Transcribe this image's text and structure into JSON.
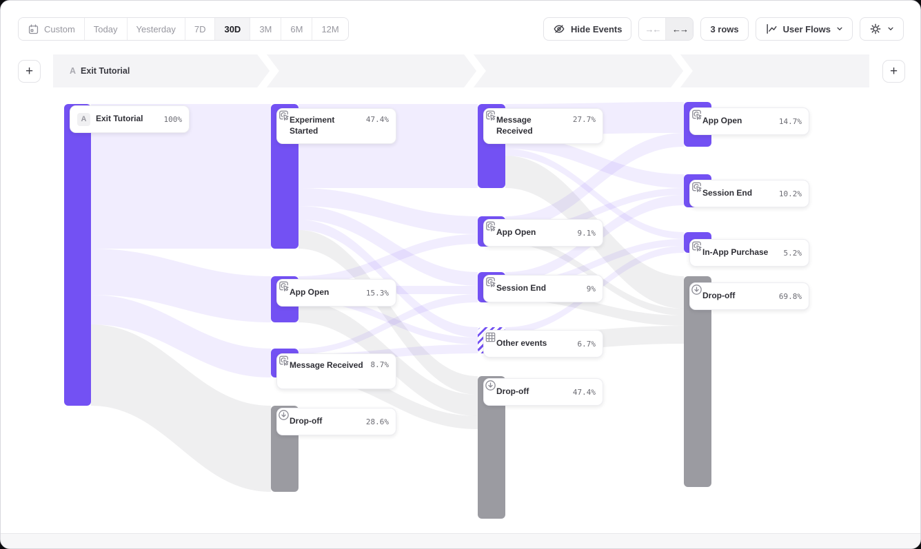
{
  "app": {
    "accent_color": "#7351f3",
    "dropoff_color": "#9b9ba1",
    "link_color": "#eeebfc",
    "dropoff_link_color": "#f3f3f5"
  },
  "toolbar": {
    "date_ranges": [
      {
        "label": "Custom",
        "has_calendar_icon": true,
        "selected": false
      },
      {
        "label": "Today",
        "selected": false
      },
      {
        "label": "Yesterday",
        "selected": false
      },
      {
        "label": "7D",
        "selected": false
      },
      {
        "label": "30D",
        "selected": true
      },
      {
        "label": "3M",
        "selected": false
      },
      {
        "label": "6M",
        "selected": false
      },
      {
        "label": "12M",
        "selected": false
      }
    ],
    "hide_events": {
      "label": "Hide Events"
    },
    "collapse_expand": {
      "collapse_glyph": "→←",
      "expand_glyph": "←→",
      "expanded": true
    },
    "rows": {
      "label": "3 rows"
    },
    "view_selector": {
      "label": "User Flows"
    }
  },
  "steps_header": {
    "badge": "A",
    "title": "Exit Tutorial",
    "add_step_label": "+"
  },
  "chart_data": {
    "type": "sankey",
    "title": "User Flows starting from Exit Tutorial",
    "columns": [
      {
        "nodes": [
          {
            "label": "Exit Tutorial",
            "pct": "100%",
            "value": 100,
            "type": "start",
            "badge": "A"
          }
        ]
      },
      {
        "nodes": [
          {
            "label": "Experiment Started",
            "pct": "47.4%",
            "value": 47.4,
            "type": "event"
          },
          {
            "label": "App Open",
            "pct": "15.3%",
            "value": 15.3,
            "type": "event"
          },
          {
            "label": "Message Received",
            "pct": "8.7%",
            "value": 8.7,
            "type": "event"
          },
          {
            "label": "Drop-off",
            "pct": "28.6%",
            "value": 28.6,
            "type": "dropoff"
          }
        ]
      },
      {
        "nodes": [
          {
            "label": "Message Received",
            "pct": "27.7%",
            "value": 27.7,
            "type": "event"
          },
          {
            "label": "App Open",
            "pct": "9.1%",
            "value": 9.1,
            "type": "event"
          },
          {
            "label": "Session End",
            "pct": "9%",
            "value": 9,
            "type": "event"
          },
          {
            "label": "Other events",
            "pct": "6.7%",
            "value": 6.7,
            "type": "other"
          },
          {
            "label": "Drop-off",
            "pct": "47.4%",
            "value": 47.4,
            "type": "dropoff"
          }
        ]
      },
      {
        "nodes": [
          {
            "label": "App Open",
            "pct": "14.7%",
            "value": 14.7,
            "type": "event"
          },
          {
            "label": "Session End",
            "pct": "10.2%",
            "value": 10.2,
            "type": "event"
          },
          {
            "label": "In-App Purchase",
            "pct": "5.2%",
            "value": 5.2,
            "type": "event"
          },
          {
            "label": "Drop-off",
            "pct": "69.8%",
            "value": 69.8,
            "type": "dropoff"
          }
        ]
      }
    ],
    "visible_links": [
      {
        "from": "Exit Tutorial",
        "to": "Experiment Started"
      },
      {
        "from": "Exit Tutorial",
        "to": "App Open (col 2)"
      },
      {
        "from": "Exit Tutorial",
        "to": "Message Received (col 2)"
      },
      {
        "from": "Exit Tutorial",
        "to": "Drop-off (col 2)"
      },
      {
        "from": "Experiment Started",
        "to": "Message Received (col 3)"
      },
      {
        "from": "Experiment Started",
        "to": "App Open (col 3)"
      },
      {
        "from": "Experiment Started",
        "to": "Session End (col 3)"
      },
      {
        "from": "Experiment Started",
        "to": "Other events"
      },
      {
        "from": "Experiment Started",
        "to": "Drop-off (col 3)"
      },
      {
        "from": "App Open (col 2)",
        "to": "App Open (col 3)"
      },
      {
        "from": "App Open (col 2)",
        "to": "Session End (col 3)"
      },
      {
        "from": "App Open (col 2)",
        "to": "Other events"
      },
      {
        "from": "App Open (col 2)",
        "to": "Drop-off (col 3)"
      },
      {
        "from": "Message Received (col 2)",
        "to": "Session End (col 3)"
      },
      {
        "from": "Message Received (col 2)",
        "to": "Other events"
      },
      {
        "from": "Message Received (col 2)",
        "to": "Drop-off (col 3)"
      },
      {
        "from": "Message Received (col 3)",
        "to": "App Open (col 4)"
      },
      {
        "from": "Message Received (col 3)",
        "to": "Session End (col 4)"
      },
      {
        "from": "Message Received (col 3)",
        "to": "In-App Purchase"
      },
      {
        "from": "Message Received (col 3)",
        "to": "Drop-off (col 4)"
      },
      {
        "from": "App Open (col 3)",
        "to": "App Open (col 4)"
      },
      {
        "from": "App Open (col 3)",
        "to": "Session End (col 4)"
      },
      {
        "from": "App Open (col 3)",
        "to": "Drop-off (col 4)"
      },
      {
        "from": "Session End (col 3)",
        "to": "Session End (col 4)"
      },
      {
        "from": "Session End (col 3)",
        "to": "In-App Purchase"
      },
      {
        "from": "Session End (col 3)",
        "to": "Drop-off (col 4)"
      },
      {
        "from": "Other events",
        "to": "In-App Purchase"
      },
      {
        "from": "Other events",
        "to": "Drop-off (col 4)"
      }
    ]
  }
}
